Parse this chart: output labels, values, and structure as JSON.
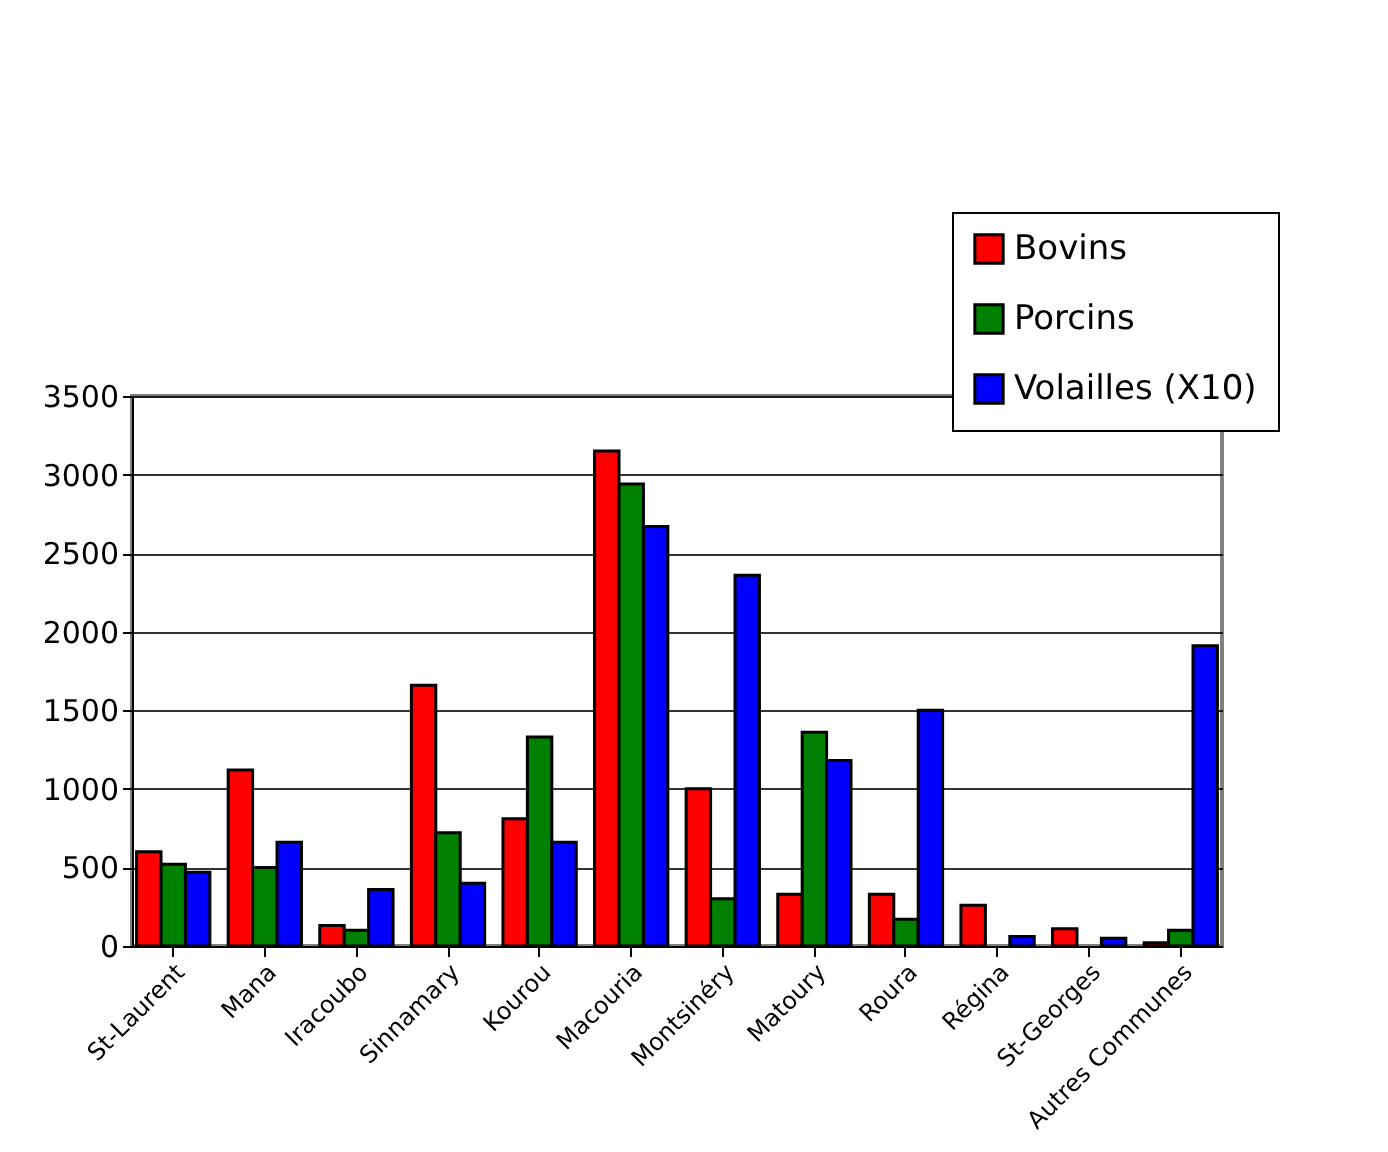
{
  "chart_data": {
    "type": "bar",
    "categories": [
      "St-Laurent",
      "Mana",
      "Iracoubo",
      "Sinnamary",
      "Kourou",
      "Macouria",
      "Montsinéry",
      "Matoury",
      "Roura",
      "Régina",
      "St-Georges",
      "Autres Communes"
    ],
    "series": [
      {
        "name": "Bovins",
        "color": "#ff0000",
        "values": [
          600,
          1120,
          130,
          1660,
          810,
          3150,
          1000,
          330,
          330,
          260,
          110,
          20
        ]
      },
      {
        "name": "Porcins",
        "color": "#008000",
        "values": [
          520,
          500,
          100,
          720,
          1330,
          2940,
          300,
          1360,
          170,
          null,
          null,
          100
        ]
      },
      {
        "name": "Volailles (X10)",
        "color": "#0000ff",
        "values": [
          470,
          660,
          360,
          400,
          660,
          2670,
          2360,
          1180,
          1500,
          60,
          50,
          1910
        ]
      }
    ],
    "ylim": [
      0,
      3500
    ],
    "yticks": [
      0,
      500,
      1000,
      1500,
      2000,
      2500,
      3000,
      3500
    ],
    "grid": "y",
    "legend": "top right"
  }
}
